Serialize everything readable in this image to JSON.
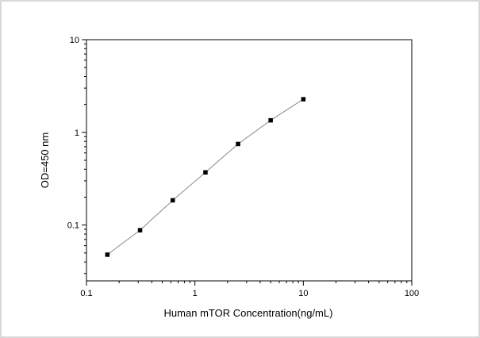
{
  "chart_data": {
    "type": "scatter",
    "xlabel": "Human mTOR Concentration(ng/mL)",
    "ylabel": "OD=450 nm",
    "xscale": "log",
    "yscale": "log",
    "xlim": [
      0.1,
      100
    ],
    "ylim": [
      0.025,
      10
    ],
    "x_ticks": [
      "0.1",
      "1",
      "10",
      "100"
    ],
    "y_ticks": [
      "0.1",
      "1",
      "10"
    ],
    "grid": false,
    "series": [
      {
        "marker": "square",
        "line": "fitted curve",
        "color": "#000000",
        "line_color": "#888888",
        "x": [
          0.156,
          0.312,
          0.625,
          1.25,
          2.5,
          5,
          10
        ],
        "y": [
          0.048,
          0.088,
          0.185,
          0.37,
          0.75,
          1.35,
          2.28
        ]
      }
    ]
  }
}
